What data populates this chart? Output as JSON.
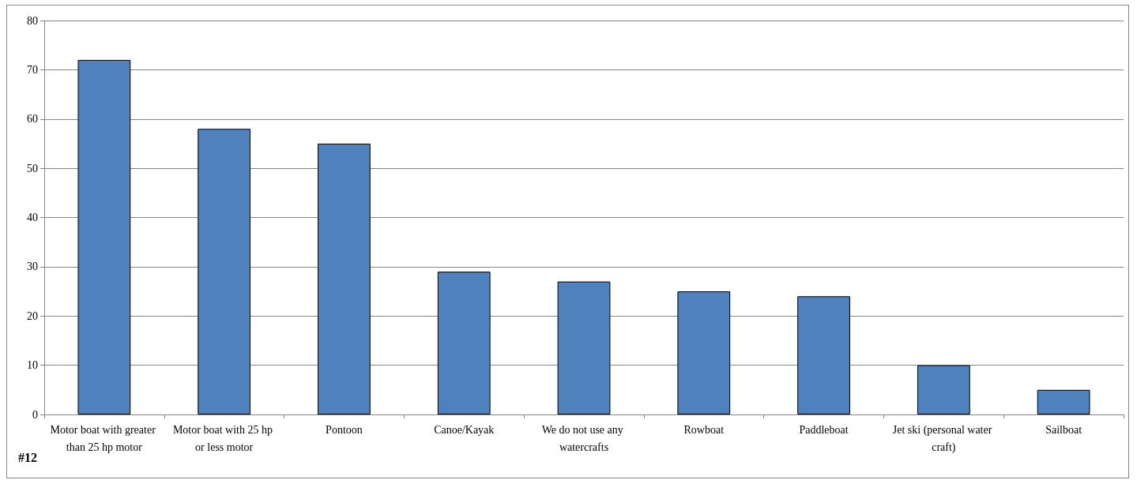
{
  "chart_data": {
    "type": "bar",
    "categories": [
      "Motor boat with greater than 25 hp motor",
      "Motor boat with 25 hp or less motor",
      "Pontoon",
      "Canoe/Kayak",
      "We do not use any watercrafts",
      "Rowboat",
      "Paddleboat",
      "Jet ski (personal water craft)",
      "Sailboat"
    ],
    "values": [
      72,
      58,
      55,
      29,
      27,
      25,
      24,
      10,
      5
    ],
    "color": "#4f81bd",
    "ylim": [
      0,
      80
    ],
    "yticks": [
      0,
      10,
      20,
      30,
      40,
      50,
      60,
      70,
      80
    ],
    "grid": "y",
    "annotations": [
      "#12"
    ]
  }
}
